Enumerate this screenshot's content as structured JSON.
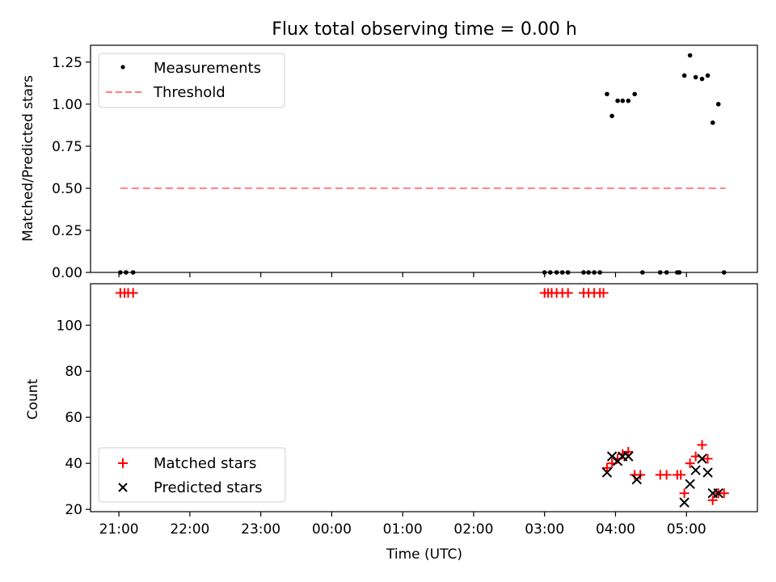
{
  "chart_data": [
    {
      "type": "scatter",
      "title": "Flux total observing time = 0.00 h",
      "xlabel": "",
      "ylabel": "Matched/Predicted stars",
      "xlim": [
        20.6,
        30.0
      ],
      "ylim": [
        0.0,
        1.35
      ],
      "yticks": [
        0.0,
        0.25,
        0.5,
        0.75,
        1.0,
        1.25
      ],
      "ytick_labels": [
        "0.00",
        "0.25",
        "0.50",
        "0.75",
        "1.00",
        "1.25"
      ],
      "legend": {
        "position": "top-left",
        "entries": [
          "Measurements",
          "Threshold"
        ]
      },
      "series": [
        {
          "name": "Measurements",
          "style": "dot",
          "color": "#000000",
          "points": [
            [
              21.02,
              0.0
            ],
            [
              21.1,
              0.0
            ],
            [
              21.2,
              0.0
            ],
            [
              27.0,
              0.0
            ],
            [
              27.08,
              0.0
            ],
            [
              27.17,
              0.0
            ],
            [
              27.25,
              0.0
            ],
            [
              27.33,
              0.0
            ],
            [
              27.55,
              0.0
            ],
            [
              27.62,
              0.0
            ],
            [
              27.7,
              0.0
            ],
            [
              27.78,
              0.0
            ],
            [
              27.88,
              1.06
            ],
            [
              27.95,
              0.93
            ],
            [
              28.03,
              1.02
            ],
            [
              28.1,
              1.02
            ],
            [
              28.18,
              1.02
            ],
            [
              28.27,
              1.06
            ],
            [
              28.38,
              0.0
            ],
            [
              28.63,
              0.0
            ],
            [
              28.72,
              0.0
            ],
            [
              28.87,
              0.0
            ],
            [
              28.9,
              0.0
            ],
            [
              28.97,
              1.17
            ],
            [
              29.05,
              1.29
            ],
            [
              29.13,
              1.16
            ],
            [
              29.22,
              1.15
            ],
            [
              29.3,
              1.17
            ],
            [
              29.37,
              0.89
            ],
            [
              29.45,
              1.0
            ],
            [
              29.53,
              0.0
            ]
          ]
        },
        {
          "name": "Threshold",
          "style": "dashed-line",
          "color": "#ff7f7f",
          "x": [
            21.02,
            29.55
          ],
          "y": [
            0.5,
            0.5
          ]
        }
      ]
    },
    {
      "type": "scatter",
      "title": "",
      "xlabel": "Time (UTC)",
      "ylabel": "Count",
      "xlim": [
        20.6,
        30.0
      ],
      "ylim": [
        19.0,
        118.0
      ],
      "yticks": [
        20,
        40,
        60,
        80,
        100
      ],
      "ytick_labels": [
        "20",
        "40",
        "60",
        "80",
        "100"
      ],
      "xticks": [
        21,
        22,
        23,
        24,
        25,
        26,
        27,
        28,
        29
      ],
      "xtick_labels": [
        "21:00",
        "22:00",
        "23:00",
        "00:00",
        "01:00",
        "02:00",
        "03:00",
        "04:00",
        "05:00"
      ],
      "legend": {
        "position": "bottom-left",
        "entries": [
          "Matched stars",
          "Predicted stars"
        ]
      },
      "series": [
        {
          "name": "Matched stars",
          "style": "plus",
          "color": "#ff0000",
          "points": [
            [
              21.02,
              114
            ],
            [
              21.08,
              114
            ],
            [
              21.13,
              114
            ],
            [
              21.2,
              114
            ],
            [
              27.0,
              114
            ],
            [
              27.05,
              114
            ],
            [
              27.1,
              114
            ],
            [
              27.17,
              114
            ],
            [
              27.25,
              114
            ],
            [
              27.33,
              114
            ],
            [
              27.55,
              114
            ],
            [
              27.62,
              114
            ],
            [
              27.7,
              114
            ],
            [
              27.78,
              114
            ],
            [
              27.83,
              114
            ],
            [
              27.88,
              38
            ],
            [
              27.95,
              40
            ],
            [
              28.03,
              42
            ],
            [
              28.1,
              44
            ],
            [
              28.18,
              45
            ],
            [
              28.27,
              35
            ],
            [
              28.35,
              35
            ],
            [
              28.63,
              35
            ],
            [
              28.72,
              35
            ],
            [
              28.87,
              35
            ],
            [
              28.92,
              35
            ],
            [
              28.97,
              27
            ],
            [
              29.05,
              40
            ],
            [
              29.13,
              43
            ],
            [
              29.22,
              48
            ],
            [
              29.3,
              42
            ],
            [
              29.37,
              24
            ],
            [
              29.45,
              27
            ],
            [
              29.53,
              27
            ]
          ]
        },
        {
          "name": "Predicted stars",
          "style": "x",
          "color": "#000000",
          "points": [
            [
              27.88,
              36
            ],
            [
              27.95,
              43
            ],
            [
              28.03,
              41
            ],
            [
              28.1,
              43
            ],
            [
              28.18,
              43
            ],
            [
              28.3,
              33
            ],
            [
              28.97,
              23
            ],
            [
              29.05,
              31
            ],
            [
              29.13,
              37
            ],
            [
              29.22,
              42
            ],
            [
              29.3,
              36
            ],
            [
              29.37,
              27
            ],
            [
              29.45,
              27
            ]
          ]
        }
      ]
    }
  ]
}
